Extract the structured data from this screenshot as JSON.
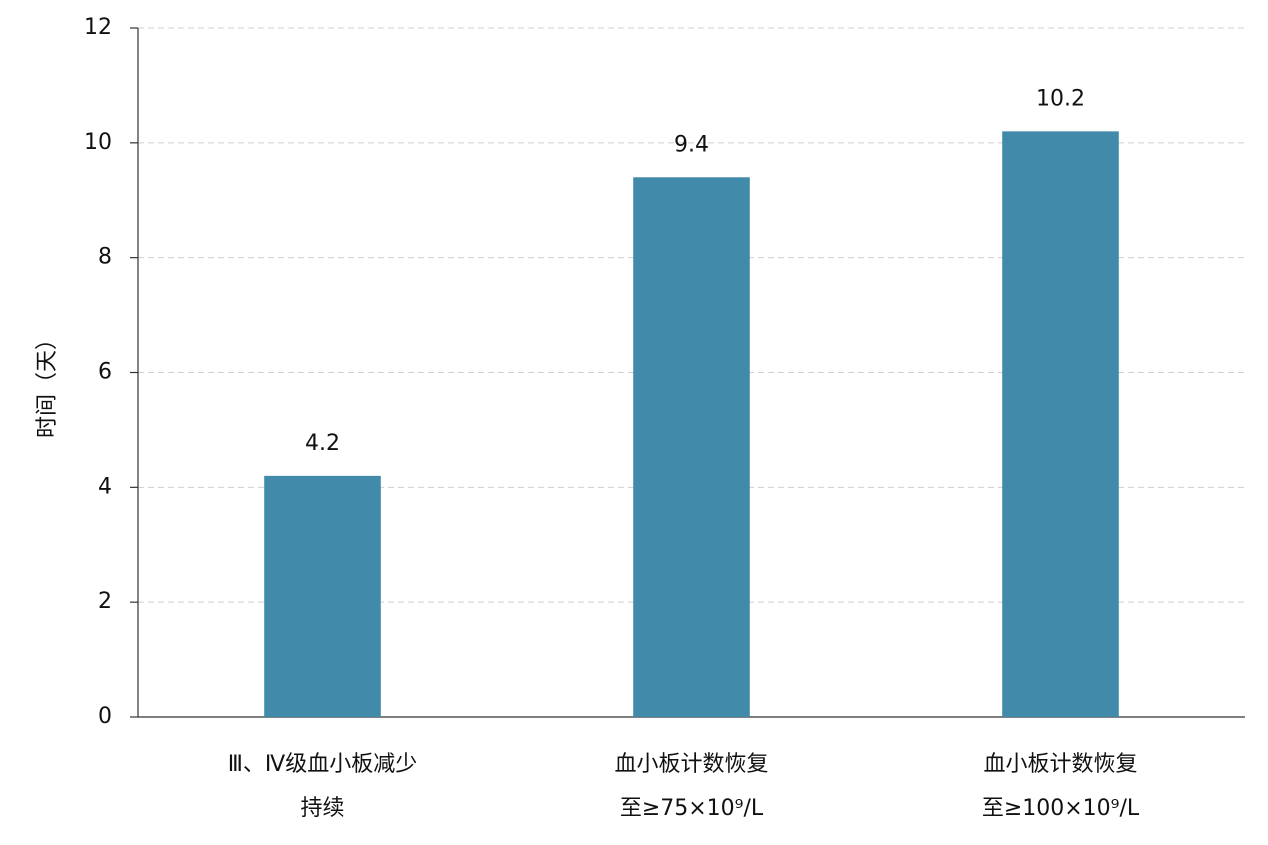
{
  "chart_data": {
    "type": "bar",
    "y_label": "时间（天）",
    "categories": [
      [
        "Ⅲ、Ⅳ级血小板减少",
        "持续"
      ],
      [
        "血小板计数恢复",
        "至≥75×10⁹/L"
      ],
      [
        "血小板计数恢复",
        "至≥100×10⁹/L"
      ]
    ],
    "values": [
      4.2,
      9.4,
      10.2
    ],
    "color": "#428aaa",
    "ylim": [
      0,
      12
    ],
    "yticks": [
      0,
      2,
      4,
      6,
      8,
      10,
      12
    ],
    "grid": true
  }
}
